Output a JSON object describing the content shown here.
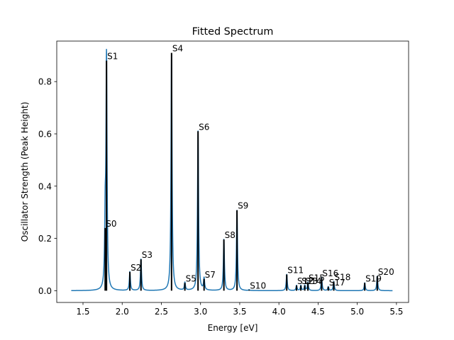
{
  "chart_data": {
    "type": "line",
    "title": "Fitted Spectrum",
    "xlabel": "Energy [eV]",
    "ylabel": "Oscillator Strength (Peak Height)",
    "xlim": [
      1.165,
      5.655
    ],
    "ylim": [
      -0.045,
      0.955
    ],
    "xticks": [
      "1.5",
      "2.0",
      "2.5",
      "3.0",
      "3.5",
      "4.0",
      "4.5",
      "5.0",
      "5.5"
    ],
    "yticks": [
      "0.0",
      "0.2",
      "0.4",
      "0.6",
      "0.8"
    ],
    "grid": false,
    "curve_color": "#1f77b4",
    "stick_color": "#000000",
    "x_range": [
      1.35,
      5.45
    ],
    "lorentz_width": 0.008,
    "peaks": [
      {
        "label": "S0",
        "x": 1.783,
        "y": 0.24
      },
      {
        "label": "S1",
        "x": 1.8,
        "y": 0.88
      },
      {
        "label": "S2",
        "x": 2.098,
        "y": 0.072
      },
      {
        "label": "S3",
        "x": 2.24,
        "y": 0.12
      },
      {
        "label": "S4",
        "x": 2.63,
        "y": 0.91
      },
      {
        "label": "S5",
        "x": 2.8,
        "y": 0.03
      },
      {
        "label": "S6",
        "x": 2.968,
        "y": 0.61
      },
      {
        "label": "S7",
        "x": 3.045,
        "y": 0.045
      },
      {
        "label": "S8",
        "x": 3.298,
        "y": 0.196
      },
      {
        "label": "S9",
        "x": 3.465,
        "y": 0.308
      },
      {
        "label": "S10",
        "x": 3.62,
        "y": 0.003
      },
      {
        "label": "S11",
        "x": 4.1,
        "y": 0.062
      },
      {
        "label": "S12",
        "x": 4.225,
        "y": 0.02
      },
      {
        "label": "S13",
        "x": 4.28,
        "y": 0.02
      },
      {
        "label": "S14",
        "x": 4.33,
        "y": 0.02
      },
      {
        "label": "S15",
        "x": 4.37,
        "y": 0.032
      },
      {
        "label": "S16",
        "x": 4.545,
        "y": 0.05
      },
      {
        "label": "S17",
        "x": 4.63,
        "y": 0.015
      },
      {
        "label": "S18",
        "x": 4.7,
        "y": 0.035
      },
      {
        "label": "S19",
        "x": 5.095,
        "y": 0.03
      },
      {
        "label": "S20",
        "x": 5.255,
        "y": 0.055
      }
    ]
  }
}
